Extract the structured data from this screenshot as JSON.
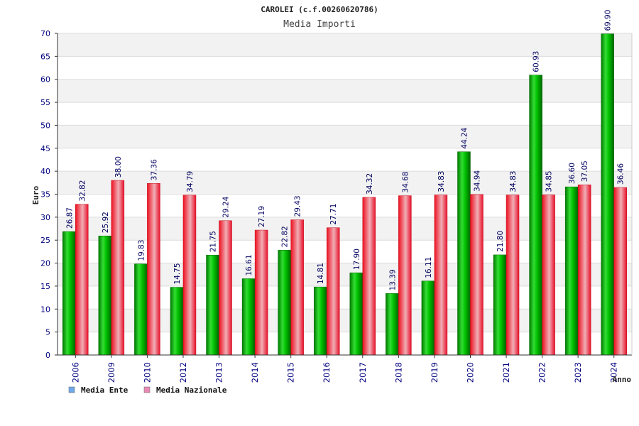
{
  "chart_data": {
    "type": "bar",
    "title": "CAROLEI (c.f.00260620786)",
    "subtitle": "Media Importi",
    "xlabel": "Anno",
    "ylabel": "Euro",
    "ylim": [
      0,
      70
    ],
    "ytick_step": 5,
    "grid": true,
    "legend_position": "bottom-left",
    "categories": [
      "2006",
      "2009",
      "2010",
      "2012",
      "2013",
      "2014",
      "2015",
      "2016",
      "2017",
      "2018",
      "2019",
      "2020",
      "2021",
      "2022",
      "2023",
      "2024"
    ],
    "series": [
      {
        "name": "Media Ente",
        "color": "#00bb00",
        "legend_color": "#6fa8e8",
        "values": [
          26.87,
          25.92,
          19.83,
          14.75,
          21.75,
          16.61,
          22.82,
          14.81,
          17.9,
          13.39,
          16.11,
          44.24,
          21.8,
          60.93,
          36.6,
          69.9
        ],
        "labels": [
          "26.87",
          "25.92",
          "19.83",
          "14.75",
          "21.75",
          "16.61",
          "22.82",
          "14.81",
          "17.90",
          "13.39",
          "16.11",
          "44.24",
          "21.80",
          "60.93",
          "36.60",
          "69.90"
        ]
      },
      {
        "name": "Media Nazionale",
        "color": "#e8303a",
        "legend_color": "#e98ab5",
        "values": [
          32.82,
          38.0,
          37.36,
          34.79,
          29.24,
          27.19,
          29.43,
          27.71,
          34.32,
          34.68,
          34.83,
          34.94,
          34.83,
          34.85,
          37.05,
          36.46
        ],
        "labels": [
          "32.82",
          "38.00",
          "37.36",
          "34.79",
          "29.24",
          "27.19",
          "29.43",
          "27.71",
          "34.32",
          "34.68",
          "34.83",
          "34.94",
          "34.83",
          "34.85",
          "37.05",
          "36.46"
        ]
      }
    ]
  }
}
